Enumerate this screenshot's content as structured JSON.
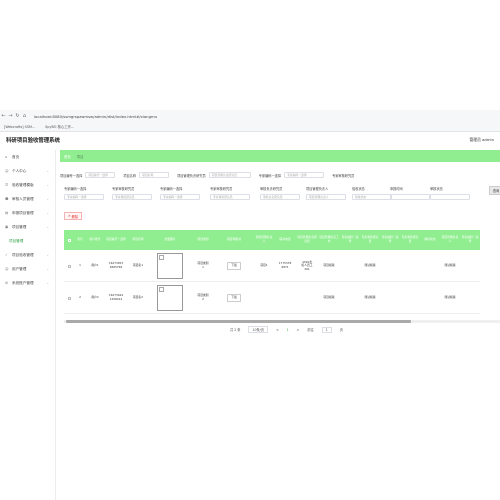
{
  "browser": {
    "url": "localhost:8080/ssmgrspzwmsw/admin/dist/index.html#/xiangmu",
    "bookmarks": [
      "[Webcrafts] SSM...",
      "SpyBO 核心工作..."
    ]
  },
  "header": {
    "title": "科研项目验收管理系统",
    "user": "管理员 admin"
  },
  "sidebar": {
    "items": [
      {
        "label": "首页",
        "icon": "home-icon"
      },
      {
        "label": "个人中心",
        "icon": "user-icon"
      },
      {
        "label": "验收管理模版",
        "icon": "list-icon"
      },
      {
        "label": "审核人员管理",
        "icon": "users-icon"
      },
      {
        "label": "申报项目管理",
        "icon": "file-icon"
      },
      {
        "label": "项目管理",
        "icon": "folder-icon"
      },
      {
        "label": "项目管理",
        "icon": "",
        "sub": true
      },
      {
        "label": "项目验收管理",
        "icon": "check-icon"
      },
      {
        "label": "用户管理",
        "icon": "user-icon"
      },
      {
        "label": "系统账户管理",
        "icon": "gear-icon"
      }
    ]
  },
  "breadcrumb": {
    "home": "首页",
    "current": "项目"
  },
  "filters_row1": [
    {
      "label": "项目编号一选择",
      "placeholder": "项目编号一选择"
    },
    {
      "label": "项目名称",
      "placeholder": "项目名称"
    },
    {
      "label": "项目管理负责研究员",
      "placeholder": "项目管理负责研究员"
    },
    {
      "label": "专家编码一选择",
      "placeholder": "专家编码一选择"
    },
    {
      "label": "专家审核研究员",
      "placeholder": ""
    }
  ],
  "filters_row2": [
    {
      "label": "专家编码一选择",
      "placeholder": "专家编码一选择"
    },
    {
      "label": "专家审核研究员",
      "placeholder": "专家审核研究员"
    },
    {
      "label": "专家编码一选择",
      "placeholder": "专家编码一选择"
    },
    {
      "label": "专家审核研究员",
      "placeholder": "专家审核研究员"
    },
    {
      "label": "审核负责研究员",
      "placeholder": "审核负责研究员"
    },
    {
      "label": "项目管理负责人",
      "placeholder": "项目管理负责人"
    },
    {
      "label": "验收状态",
      "placeholder": "验收状态"
    },
    {
      "label": "申报时间",
      "placeholder": ""
    },
    {
      "label": "审核状态",
      "placeholder": ""
    }
  ],
  "search_label": "查询",
  "delete_label": "删除",
  "table": {
    "headers": [
      "",
      "索引",
      "用户账号",
      "项目编号一选择",
      "项目名称",
      "封面图片",
      "项目类别",
      "项目申报书",
      "项目管理负责人",
      "联系电话",
      "项目管理负责研究员",
      "项目管理负责工作",
      "专家编码一选择",
      "专家审核研究员",
      "专家编码一选择",
      "专家审核研究员",
      "审核状态",
      "项目管理负责人",
      "专家编码一选择"
    ],
    "rows": [
      {
        "index": "1",
        "account": "用户1",
        "code": "16473053\n4665766",
        "name": "项目名1",
        "category": "项目类别\n1",
        "doc_btn": "下载",
        "manager": "项目1",
        "phone": "1775378\n6871",
        "researcher": "4392考\n核人员工\n201",
        "work": "项目模版",
        "e1": "",
        "e2": "测试模版",
        "e3": "",
        "e4": "",
        "status": "",
        "m2": "测试模版",
        "e5": ""
      },
      {
        "index": "2",
        "account": "用户2",
        "code": "16473044\n1458414",
        "name": "项目名2",
        "category": "项目类别\n2",
        "doc_btn": "下载",
        "manager": "",
        "phone": "",
        "researcher": "",
        "work": "项目模版",
        "e1": "",
        "e2": "测试模版",
        "e3": "",
        "e4": "",
        "status": "",
        "m2": "测试模版",
        "e5": ""
      }
    ]
  },
  "pager": {
    "total": "共 2 条",
    "size": "10条/页",
    "prev": "<",
    "page": "1",
    "next": ">",
    "goto": "前往",
    "goto_page": "1",
    "unit": "页"
  },
  "colors": {
    "accent": "#90ee90",
    "danger": "#e03131"
  }
}
